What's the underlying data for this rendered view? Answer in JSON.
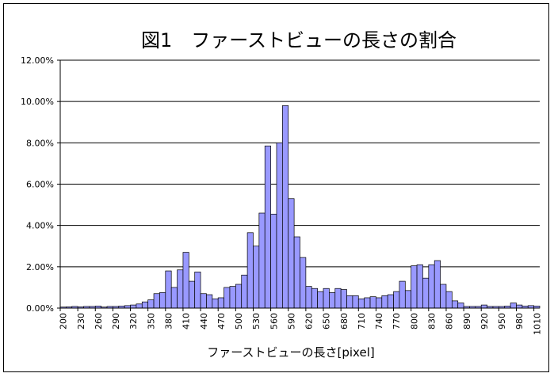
{
  "chart_data": {
    "type": "bar",
    "title": "図1　ファーストビューの長さの割合",
    "xlabel": "ファーストビューの長さ[pixel]",
    "ylabel": "",
    "ylim": [
      0,
      12
    ],
    "y_ticks": [
      "0.00%",
      "2.00%",
      "4.00%",
      "6.00%",
      "8.00%",
      "10.00%",
      "12.00%"
    ],
    "x_tick_labels": [
      "200",
      "230",
      "260",
      "290",
      "320",
      "350",
      "380",
      "410",
      "440",
      "470",
      "500",
      "530",
      "560",
      "590",
      "620",
      "650",
      "680",
      "710",
      "740",
      "770",
      "800",
      "830",
      "860",
      "890",
      "920",
      "950",
      "980",
      "1010"
    ],
    "grid": true,
    "bar_color": "#9999ff",
    "bin_width": 10,
    "x_start": 200,
    "values": [
      0.05,
      0.06,
      0.08,
      0.06,
      0.08,
      0.08,
      0.1,
      0.05,
      0.08,
      0.08,
      0.1,
      0.12,
      0.15,
      0.2,
      0.3,
      0.4,
      0.7,
      0.75,
      1.8,
      1.0,
      1.85,
      2.7,
      1.3,
      1.75,
      0.7,
      0.65,
      0.45,
      0.5,
      1.0,
      1.05,
      1.15,
      1.6,
      3.65,
      3.0,
      4.6,
      7.85,
      4.55,
      8.0,
      9.8,
      5.3,
      3.45,
      2.45,
      1.05,
      0.95,
      0.8,
      0.95,
      0.75,
      0.95,
      0.9,
      0.6,
      0.6,
      0.45,
      0.5,
      0.55,
      0.5,
      0.6,
      0.65,
      0.8,
      1.3,
      0.85,
      2.05,
      2.1,
      1.45,
      2.1,
      2.3,
      1.15,
      0.8,
      0.35,
      0.25,
      0.08,
      0.08,
      0.08,
      0.15,
      0.08,
      0.08,
      0.08,
      0.1,
      0.25,
      0.15,
      0.1,
      0.12,
      0.1
    ]
  }
}
